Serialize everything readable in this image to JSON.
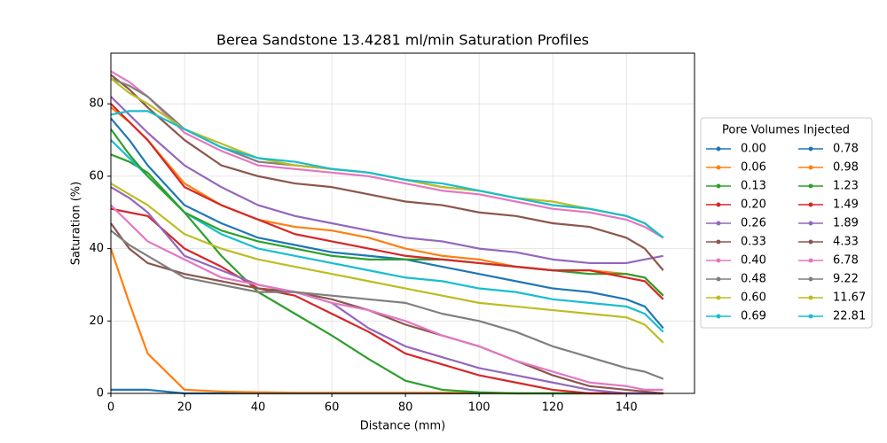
{
  "chart_data": {
    "type": "line",
    "title": "Berea Sandstone 13.4281 ml/min Saturation Profiles",
    "x_label": "Distance (mm)",
    "y_label": "Saturation (%)",
    "legend_title": "Pore Volumes Injected",
    "legend_position": "right",
    "grid": true,
    "xlim": [
      0,
      158.5
    ],
    "ylim": [
      0,
      94
    ],
    "xticks": [
      0,
      20,
      40,
      60,
      80,
      100,
      120,
      140
    ],
    "yticks": [
      0,
      20,
      40,
      60,
      80
    ],
    "x": [
      0,
      5,
      10,
      20,
      30,
      40,
      50,
      60,
      70,
      80,
      90,
      100,
      110,
      120,
      130,
      140,
      145,
      150
    ],
    "series": [
      {
        "name": "0.00",
        "color": "#1f77b4",
        "values": [
          1,
          1,
          1,
          0,
          0,
          0,
          0,
          0,
          0,
          0,
          0,
          0,
          0,
          0,
          0,
          0,
          0,
          0
        ]
      },
      {
        "name": "0.06",
        "color": "#ff7f0e",
        "values": [
          40,
          25,
          11,
          1,
          0.5,
          0.3,
          0.2,
          0.2,
          0.2,
          0.2,
          0.2,
          0.1,
          0,
          0,
          0,
          0,
          0,
          0
        ]
      },
      {
        "name": "0.13",
        "color": "#2ca02c",
        "values": [
          66,
          64,
          61,
          50,
          38,
          28,
          22,
          16,
          9.5,
          3.5,
          1,
          0.3,
          0,
          0,
          0,
          0,
          0,
          0
        ]
      },
      {
        "name": "0.20",
        "color": "#d62728",
        "values": [
          51,
          50,
          49,
          40,
          35,
          29,
          27,
          22,
          17,
          11,
          8,
          5,
          3,
          1,
          0,
          0,
          0,
          0
        ]
      },
      {
        "name": "0.26",
        "color": "#9467bd",
        "values": [
          57,
          54,
          50,
          38,
          34,
          30,
          28,
          25,
          18,
          13,
          10,
          7,
          5,
          3,
          1,
          0,
          0,
          0
        ]
      },
      {
        "name": "0.33",
        "color": "#8c564b",
        "values": [
          47,
          40,
          36,
          33,
          31,
          29,
          28,
          26,
          23,
          19,
          16,
          13,
          9,
          5,
          2,
          1,
          0.5,
          0
        ]
      },
      {
        "name": "0.40",
        "color": "#e377c2",
        "values": [
          52,
          47,
          42,
          37,
          32,
          30,
          28,
          25,
          23,
          20,
          16,
          13,
          9,
          6,
          3,
          2,
          1,
          1
        ]
      },
      {
        "name": "0.48",
        "color": "#7f7f7f",
        "values": [
          45,
          41,
          38,
          32,
          30,
          28,
          28,
          27,
          26,
          25,
          22,
          20,
          17,
          13,
          10,
          7,
          6,
          4
        ]
      },
      {
        "name": "0.60",
        "color": "#bcbd22",
        "values": [
          58,
          55,
          52,
          44,
          40,
          37,
          35,
          33,
          31,
          29,
          27,
          25,
          24,
          23,
          22,
          21,
          19,
          14
        ]
      },
      {
        "name": "0.69",
        "color": "#17becf",
        "values": [
          70,
          65,
          60,
          50,
          44,
          40,
          38,
          36,
          34,
          32,
          31,
          29,
          28,
          26,
          25,
          24,
          22,
          17
        ]
      },
      {
        "name": "0.78",
        "color": "#1f77b4",
        "values": [
          76,
          70,
          63,
          52,
          47,
          43,
          41,
          39,
          38,
          37,
          35,
          33,
          31,
          29,
          28,
          26,
          24,
          18
        ]
      },
      {
        "name": "0.98",
        "color": "#ff7f0e",
        "values": [
          79,
          75,
          70,
          58,
          52,
          48,
          46,
          45,
          43,
          40,
          38,
          37,
          35,
          34,
          34,
          33,
          32,
          27
        ]
      },
      {
        "name": "1.23",
        "color": "#2ca02c",
        "values": [
          73,
          66,
          60,
          50,
          45,
          42,
          40,
          38,
          37,
          37,
          37,
          36,
          35,
          34,
          33,
          33,
          32,
          27
        ]
      },
      {
        "name": "1.49",
        "color": "#d62728",
        "values": [
          80,
          75,
          70,
          57,
          52,
          48,
          44,
          42,
          40,
          38,
          37,
          36,
          35,
          34,
          34,
          32,
          31,
          26
        ]
      },
      {
        "name": "1.89",
        "color": "#9467bd",
        "values": [
          82,
          77,
          72,
          63,
          57,
          52,
          49,
          47,
          45,
          43,
          42,
          40,
          39,
          37,
          36,
          36,
          37,
          38
        ]
      },
      {
        "name": "4.33",
        "color": "#8c564b",
        "values": [
          88,
          84,
          79,
          70,
          63,
          60,
          58,
          57,
          55,
          53,
          52,
          50,
          49,
          47,
          46,
          43,
          40,
          34
        ]
      },
      {
        "name": "6.78",
        "color": "#e377c2",
        "values": [
          89,
          86,
          82,
          72,
          67,
          63,
          62,
          61,
          60,
          58,
          56,
          55,
          53,
          51,
          50,
          48,
          46,
          43
        ]
      },
      {
        "name": "9.22",
        "color": "#7f7f7f",
        "values": [
          87,
          85,
          82,
          73,
          68,
          64,
          63,
          62,
          61,
          59,
          57,
          56,
          54,
          52,
          51,
          49,
          47,
          43
        ]
      },
      {
        "name": "11.67",
        "color": "#bcbd22",
        "values": [
          87,
          83,
          80,
          73,
          69,
          65,
          63,
          62,
          61,
          59,
          57,
          56,
          54,
          53,
          51,
          49,
          47,
          43
        ]
      },
      {
        "name": "22.81",
        "color": "#17becf",
        "values": [
          77,
          78,
          78,
          73,
          68,
          65,
          64,
          62,
          61,
          59,
          58,
          56,
          54,
          52,
          51,
          49,
          47,
          43
        ]
      }
    ]
  }
}
